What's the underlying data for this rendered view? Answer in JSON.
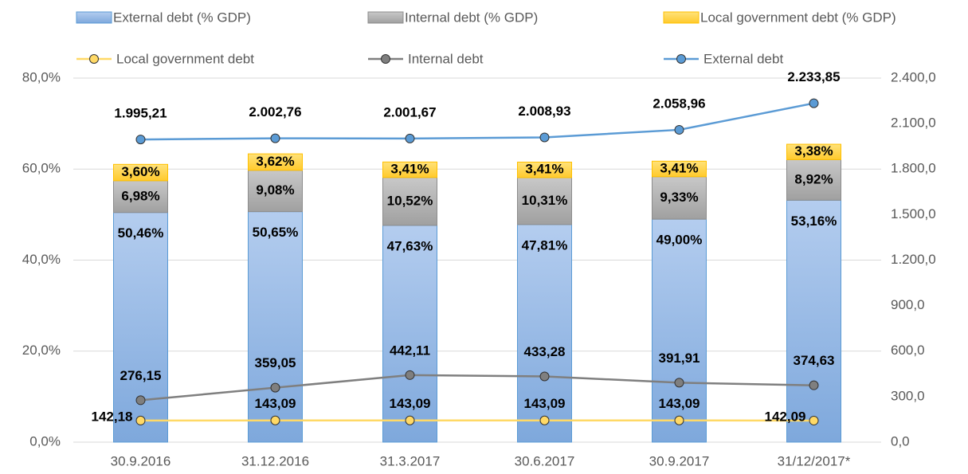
{
  "chart_data": {
    "type": "combo",
    "categories": [
      "30.9.2016",
      "31.12.2016",
      "31.3.2017",
      "30.6.2017",
      "30.9.2017",
      "31/12/2017*"
    ],
    "ylim": [
      0,
      80
    ],
    "yticks": [
      {
        "value": 0,
        "label": "0,0%"
      },
      {
        "value": 20,
        "label": "20,0%"
      },
      {
        "value": 40,
        "label": "40,0%"
      },
      {
        "value": 60,
        "label": "60,0%"
      },
      {
        "value": 80,
        "label": "80,0%"
      }
    ],
    "y2lim": [
      0,
      2400
    ],
    "y2ticks": [
      {
        "value": 0,
        "label": "0,0"
      },
      {
        "value": 300,
        "label": "300,0"
      },
      {
        "value": 600,
        "label": "600,0"
      },
      {
        "value": 900,
        "label": "900,0"
      },
      {
        "value": 1200,
        "label": "1.200,0"
      },
      {
        "value": 1500,
        "label": "1.500,0"
      },
      {
        "value": 1800,
        "label": "1.800,0"
      },
      {
        "value": 2100,
        "label": "2.100,0"
      },
      {
        "value": 2400,
        "label": "2.400,0"
      }
    ],
    "grid": true,
    "series": [
      {
        "name": "External debt (% GDP)",
        "type": "bar",
        "color": "#9dbde8",
        "values": [
          50.46,
          50.65,
          47.63,
          47.81,
          49.0,
          53.16
        ],
        "value_labels": [
          "50,46%",
          "50,65%",
          "47,63%",
          "47,81%",
          "49,00%",
          "53,16%"
        ]
      },
      {
        "name": "Internal debt (% GDP)",
        "type": "bar",
        "color": "#b4b4b4",
        "values": [
          6.98,
          9.08,
          10.52,
          10.31,
          9.33,
          8.92
        ],
        "value_labels": [
          "6,98%",
          "9,08%",
          "10,52%",
          "10,31%",
          "9,33%",
          "8,92%"
        ]
      },
      {
        "name": "Local government debt (% GDP)",
        "type": "bar",
        "color": "#ffd54f",
        "values": [
          3.6,
          3.62,
          3.41,
          3.41,
          3.41,
          3.38
        ],
        "value_labels": [
          "3,60%",
          "3,62%",
          "3,41%",
          "3,41%",
          "3,41%",
          "3,38%"
        ]
      },
      {
        "name": "Local government debt",
        "type": "line",
        "axis": "y2",
        "color": "#ffd966",
        "values": [
          142.18,
          143.09,
          143.09,
          143.09,
          143.09,
          142.09
        ],
        "value_labels": [
          "142,18",
          "143,09",
          "143,09",
          "143,09",
          "143,09",
          "142,09"
        ]
      },
      {
        "name": "Internal debt",
        "type": "line",
        "axis": "y2",
        "color": "#7f7f7f",
        "values": [
          276.15,
          359.05,
          442.11,
          433.28,
          391.91,
          374.63
        ],
        "value_labels": [
          "276,15",
          "359,05",
          "442,11",
          "433,28",
          "391,91",
          "374,63"
        ]
      },
      {
        "name": "External debt",
        "type": "line",
        "axis": "y2",
        "color": "#5b9bd5",
        "values": [
          1995.21,
          2002.76,
          2001.67,
          2008.93,
          2058.96,
          2233.85
        ],
        "value_labels": [
          "1.995,21",
          "2.002,76",
          "2.001,67",
          "2.008,93",
          "2.058,96",
          "2.233,85"
        ]
      }
    ]
  }
}
